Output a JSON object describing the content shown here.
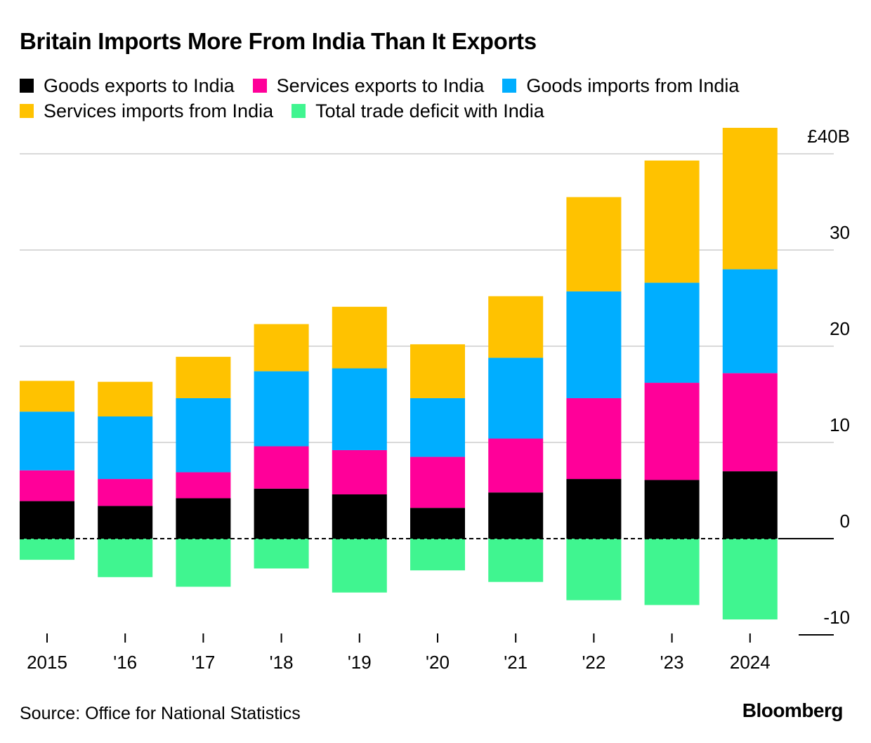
{
  "chart_data": {
    "type": "bar",
    "stacked": true,
    "title": "Britain Imports More From India Than It Exports",
    "categories": [
      "2015",
      "'16",
      "'17",
      "'18",
      "'19",
      "'20",
      "'21",
      "'22",
      "'23",
      "2024"
    ],
    "series": [
      {
        "name": "Goods exports to India",
        "color": "#000000",
        "values": [
          3.9,
          3.4,
          4.2,
          5.2,
          4.6,
          3.2,
          4.8,
          6.2,
          6.1,
          7.0
        ]
      },
      {
        "name": "Services exports to India",
        "color": "#ff0099",
        "values": [
          3.2,
          2.8,
          2.7,
          4.4,
          4.6,
          5.3,
          5.6,
          8.4,
          10.1,
          10.2
        ]
      },
      {
        "name": "Goods imports from India",
        "color": "#00aeff",
        "values": [
          6.1,
          6.5,
          7.7,
          7.8,
          8.5,
          6.1,
          8.4,
          11.1,
          10.4,
          10.8
        ]
      },
      {
        "name": "Services imports from India",
        "color": "#ffc200",
        "values": [
          3.2,
          3.6,
          4.3,
          4.9,
          6.4,
          5.6,
          6.4,
          9.8,
          12.7,
          14.7
        ]
      },
      {
        "name": "Total trade deficit with India",
        "color": "#40f590",
        "values": [
          -2.2,
          -4.0,
          -5.0,
          -3.1,
          -5.6,
          -3.3,
          -4.5,
          -6.4,
          -6.9,
          -8.4
        ]
      }
    ],
    "ylim": [
      -10,
      42
    ],
    "yticks": [
      -10,
      0,
      10,
      20,
      30,
      40
    ],
    "ytick_labels": [
      "-10",
      "0",
      "10",
      "20",
      "30",
      "£40B"
    ],
    "y_axis_position": "right",
    "grid": true,
    "legend_position": "top-left"
  },
  "source": "Source: Office for National Statistics",
  "brand": "Bloomberg"
}
